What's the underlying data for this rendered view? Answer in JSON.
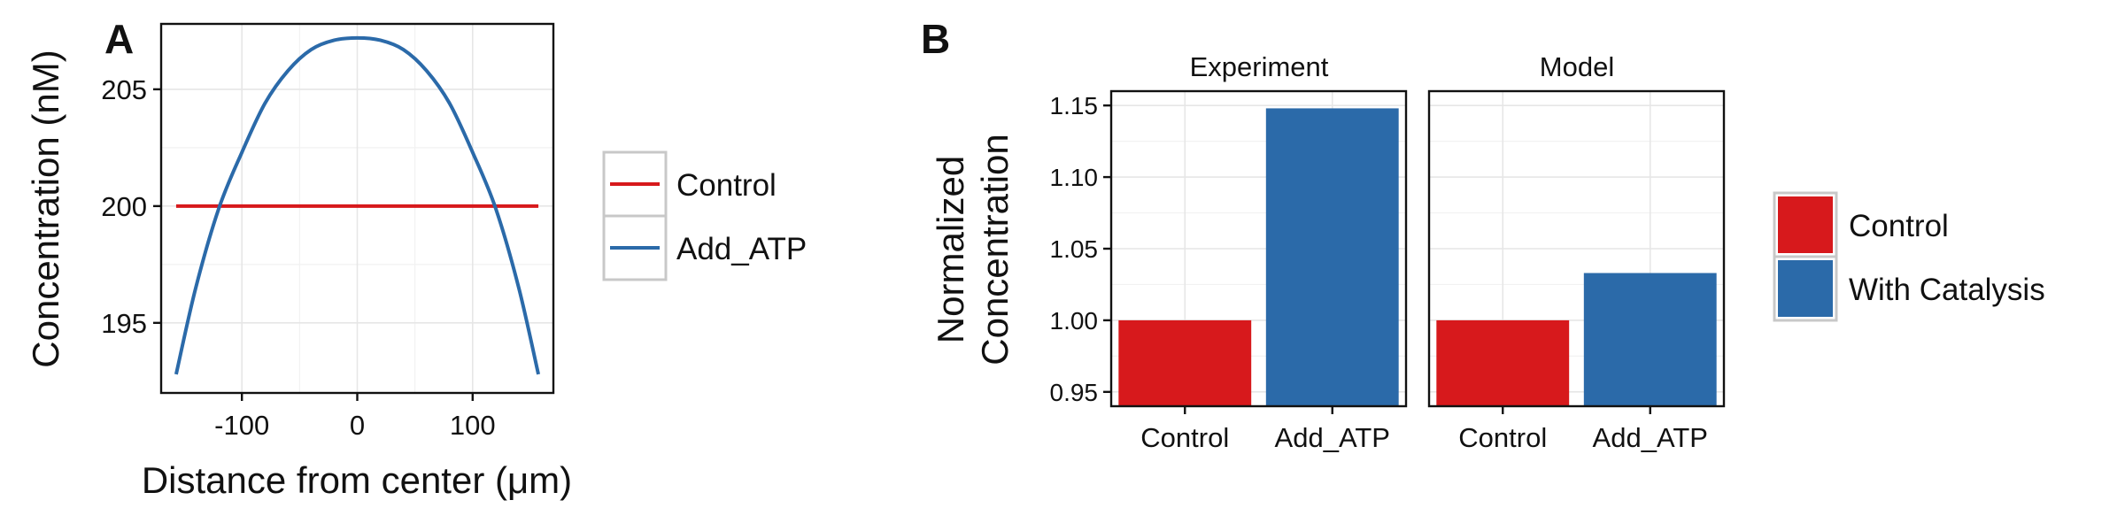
{
  "figure": {
    "panel_a_letter": "A",
    "panel_b_letter": "B"
  },
  "chart_data": [
    {
      "type": "line",
      "panel": "A",
      "xlabel": "Distance from center (μm)",
      "ylabel": "Concentration (nM)",
      "xlim": [
        -170,
        170
      ],
      "ylim": [
        192,
        207.8
      ],
      "x_ticks": [
        -100,
        0,
        100
      ],
      "x_tick_labels": [
        "-100",
        "0",
        "100"
      ],
      "y_ticks": [
        195,
        200,
        205
      ],
      "y_tick_labels": [
        "195",
        "200",
        "205"
      ],
      "grid": true,
      "legend_position": "right",
      "series": [
        {
          "name": "Control",
          "color": "#d7191c",
          "x": [
            -157,
            -120,
            -80,
            -40,
            0,
            40,
            80,
            120,
            157
          ],
          "y": [
            200,
            200,
            200,
            200,
            200,
            200,
            200,
            200,
            200
          ]
        },
        {
          "name": "Add_ATP",
          "color": "#2b6aa9",
          "x": [
            -157,
            -140,
            -120,
            -100,
            -80,
            -60,
            -40,
            -20,
            0,
            20,
            40,
            60,
            80,
            100,
            120,
            140,
            157
          ],
          "y": [
            192.8,
            196.5,
            199.9,
            202.3,
            204.4,
            205.8,
            206.7,
            207.1,
            207.2,
            207.1,
            206.7,
            205.8,
            204.4,
            202.3,
            199.9,
            196.5,
            192.8
          ]
        }
      ]
    },
    {
      "type": "bar",
      "panel": "B",
      "ylabel": [
        "Normalized",
        "Concentration"
      ],
      "ylim": [
        0.94,
        1.16
      ],
      "y_ticks": [
        0.95,
        1.0,
        1.05,
        1.1,
        1.15
      ],
      "y_tick_labels": [
        "0.95",
        "1.00",
        "1.05",
        "1.10",
        "1.15"
      ],
      "categories": [
        "Control",
        "Add_ATP"
      ],
      "grid": true,
      "legend_position": "right",
      "legend": [
        {
          "label": "Control",
          "color": "#d7191c"
        },
        {
          "label": "With Catalysis",
          "color": "#2b6aa9"
        }
      ],
      "facets": [
        {
          "title": "Experiment",
          "values": [
            1.0,
            1.148
          ],
          "colors": [
            "#d7191c",
            "#2b6aa9"
          ]
        },
        {
          "title": "Model",
          "values": [
            1.0,
            1.033
          ],
          "colors": [
            "#d7191c",
            "#2b6aa9"
          ]
        }
      ]
    }
  ]
}
